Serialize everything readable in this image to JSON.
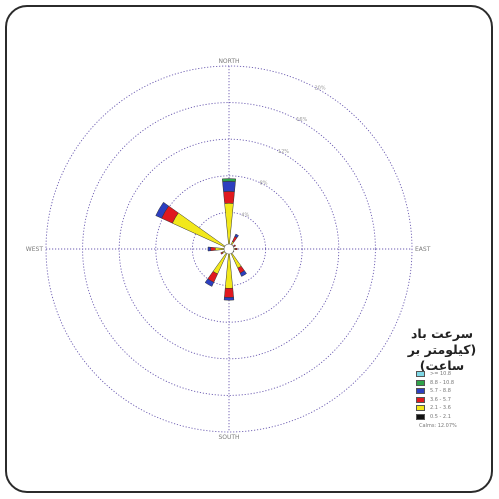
{
  "chart_data": {
    "type": "wind-rose",
    "title": "",
    "directions": [
      {
        "deg": 0,
        "label": "NORTH"
      },
      {
        "deg": 90,
        "label": "EAST"
      },
      {
        "deg": 180,
        "label": "SOUTH"
      },
      {
        "deg": 270,
        "label": "WEST"
      }
    ],
    "rings": [
      {
        "pct": 4,
        "label": "4%"
      },
      {
        "pct": 8,
        "label": "8%"
      },
      {
        "pct": 12,
        "label": "12%"
      },
      {
        "pct": 16,
        "label": "16%"
      },
      {
        "pct": 20,
        "label": "20%"
      }
    ],
    "max_pct": 20,
    "speed_bins": [
      {
        "label": ">= 10.8",
        "color": "#7fd8e6"
      },
      {
        "label": "8.8 - 10.8",
        "color": "#2fa34a"
      },
      {
        "label": "5.7 - 8.8",
        "color": "#2d3fbf"
      },
      {
        "label": "3.6 - 5.7",
        "color": "#e0191f"
      },
      {
        "label": "2.1 - 3.6",
        "color": "#f2e81b"
      },
      {
        "label": "0.5 - 2.1",
        "color": "#111111"
      }
    ],
    "series": [
      {
        "dir": 0,
        "values": [
          0,
          0.3,
          1.1,
          1.3,
          4.8,
          0.2
        ]
      },
      {
        "dir": 30,
        "values": [
          0,
          0,
          0.3,
          0.6,
          0.8,
          0.1
        ]
      },
      {
        "dir": 60,
        "values": [
          0,
          0,
          0,
          0.2,
          0.5,
          0.1
        ]
      },
      {
        "dir": 90,
        "values": [
          0,
          0,
          0,
          0.2,
          0.6,
          0.1
        ]
      },
      {
        "dir": 120,
        "values": [
          0,
          0,
          0,
          0.1,
          0.4,
          0.1
        ]
      },
      {
        "dir": 150,
        "values": [
          0,
          0,
          0.4,
          0.6,
          2.2,
          0.1
        ]
      },
      {
        "dir": 180,
        "values": [
          0,
          0,
          0.3,
          1.0,
          4.1,
          0.2
        ]
      },
      {
        "dir": 210,
        "values": [
          0,
          0,
          0.5,
          1.0,
          2.8,
          0.2
        ]
      },
      {
        "dir": 240,
        "values": [
          0,
          0,
          0,
          0.2,
          0.7,
          0.1
        ]
      },
      {
        "dir": 270,
        "values": [
          0,
          0,
          0.3,
          0.5,
          1.3,
          0.2
        ]
      },
      {
        "dir": 300,
        "values": [
          0,
          0,
          0.7,
          1.3,
          6.6,
          0.2
        ]
      },
      {
        "dir": 330,
        "values": [
          0,
          0,
          0,
          0,
          0,
          0
        ]
      }
    ],
    "calms_label": "Calms: 12.07%",
    "legend_position": "bottom-right",
    "grid": true
  },
  "legend": {
    "title_line1": "سرعت باد",
    "title_line2": "(کیلومتر بر ساعت)"
  },
  "colors": {
    "frame": "#2b2b2b",
    "grid": "#6a5ab0",
    "bar_outline": "#333333"
  }
}
